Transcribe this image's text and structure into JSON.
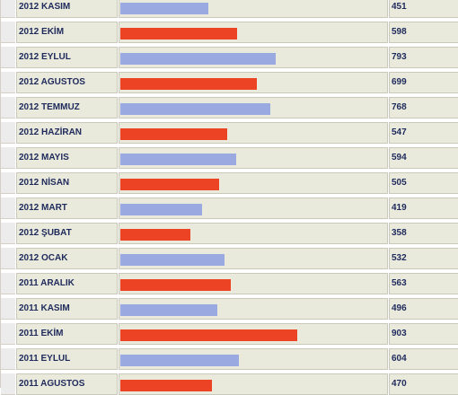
{
  "table": {
    "rows": [
      {
        "label": "2012 KASIM",
        "value": "451",
        "amount": 451,
        "color": "#9aaae0"
      },
      {
        "label": "2012 EKİM",
        "value": "598",
        "amount": 598,
        "color": "#ec4324"
      },
      {
        "label": "2012 EYLUL",
        "value": "793",
        "amount": 793,
        "color": "#9aaae0"
      },
      {
        "label": "2012 AGUSTOS",
        "value": "699",
        "amount": 699,
        "color": "#ec4324"
      },
      {
        "label": "2012 TEMMUZ",
        "value": "768",
        "amount": 768,
        "color": "#9aaae0"
      },
      {
        "label": "2012 HAZİRAN",
        "value": "547",
        "amount": 547,
        "color": "#ec4324"
      },
      {
        "label": "2012 MAYIS",
        "value": "594",
        "amount": 594,
        "color": "#9aaae0"
      },
      {
        "label": "2012 NİSAN",
        "value": "505",
        "amount": 505,
        "color": "#ec4324"
      },
      {
        "label": "2012 MART",
        "value": "419",
        "amount": 419,
        "color": "#9aaae0"
      },
      {
        "label": "2012 ŞUBAT",
        "value": "358",
        "amount": 358,
        "color": "#ec4324"
      },
      {
        "label": "2012 OCAK",
        "value": "532",
        "amount": 532,
        "color": "#9aaae0"
      },
      {
        "label": "2011 ARALIK",
        "value": "563",
        "amount": 563,
        "color": "#ec4324"
      },
      {
        "label": "2011 KASIM",
        "value": "496",
        "amount": 496,
        "color": "#9aaae0"
      },
      {
        "label": "2011 EKİM",
        "value": "903",
        "amount": 903,
        "color": "#ec4324"
      },
      {
        "label": "2011 EYLUL",
        "value": "604",
        "amount": 604,
        "color": "#9aaae0"
      },
      {
        "label": "2011 AGUSTOS",
        "value": "470",
        "amount": 470,
        "color": "#ec4324"
      }
    ]
  }
}
